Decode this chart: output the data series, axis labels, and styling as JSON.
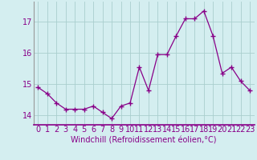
{
  "x": [
    0,
    1,
    2,
    3,
    4,
    5,
    6,
    7,
    8,
    9,
    10,
    11,
    12,
    13,
    14,
    15,
    16,
    17,
    18,
    19,
    20,
    21,
    22,
    23
  ],
  "y": [
    14.9,
    14.7,
    14.4,
    14.2,
    14.2,
    14.2,
    14.3,
    14.1,
    13.9,
    14.3,
    14.4,
    15.55,
    14.8,
    15.95,
    15.95,
    16.55,
    17.1,
    17.1,
    17.35,
    16.55,
    15.35,
    15.55,
    15.1,
    14.8
  ],
  "line_color": "#880088",
  "marker": "+",
  "bg_color": "#d4eef0",
  "grid_color": "#aacece",
  "tick_color": "#880088",
  "xlabel": "Windchill (Refroidissement éolien,°C)",
  "ylim": [
    13.7,
    17.65
  ],
  "xlim": [
    -0.5,
    23.5
  ],
  "yticks": [
    14,
    15,
    16,
    17
  ],
  "xticks": [
    0,
    1,
    2,
    3,
    4,
    5,
    6,
    7,
    8,
    9,
    10,
    11,
    12,
    13,
    14,
    15,
    16,
    17,
    18,
    19,
    20,
    21,
    22,
    23
  ],
  "xlabel_fontsize": 7,
  "tick_fontsize": 7
}
